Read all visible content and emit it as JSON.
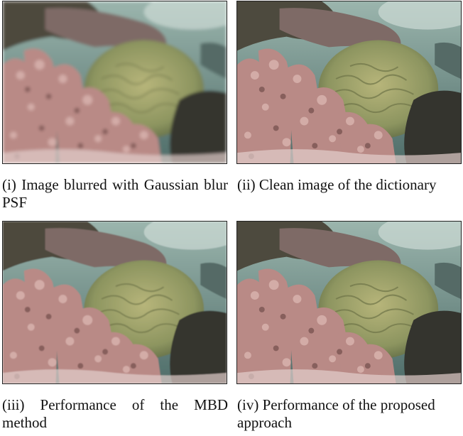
{
  "figure": {
    "panels": [
      {
        "id": "i",
        "caption": "(i) Image blurred with Gaussian blur PSF",
        "image": "blurred-coral-reef"
      },
      {
        "id": "ii",
        "caption": "(ii) Clean image of the dictionary",
        "image": "clean-coral-reef"
      },
      {
        "id": "iii",
        "caption": "(iii) Performance of the MBD method",
        "image": "restored-coral-reef-mbd"
      },
      {
        "id": "iv",
        "caption": "(iv) Performance of the proposed approach",
        "image": "restored-coral-reef-proposed"
      }
    ]
  },
  "colors": {
    "water": "#6f8f8a",
    "coral_pink": "#b98a86",
    "brain_coral": "#9da06a",
    "dark_rock": "#3a3a34"
  }
}
